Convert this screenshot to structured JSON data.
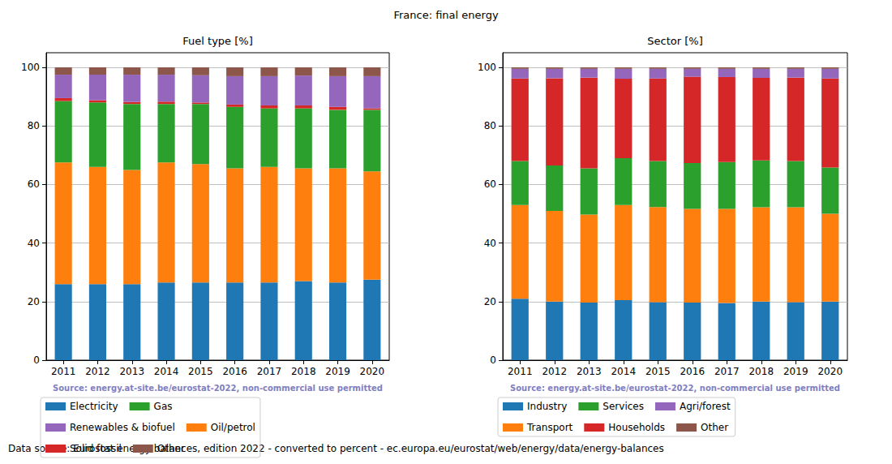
{
  "title": "France: final energy",
  "footnote": "Data source: Eurostat energy balances, edition 2022 - converted to percent - ec.europa.eu/eurostat/web/energy/data/energy-balances",
  "chart_data": [
    {
      "type": "bar",
      "stacked": true,
      "title": "Fuel type [%]",
      "annotation": "Source: energy.at-site.be/eurostat-2022, non-commercial use permitted",
      "categories": [
        "2011",
        "2012",
        "2013",
        "2014",
        "2015",
        "2016",
        "2017",
        "2018",
        "2019",
        "2020"
      ],
      "series": [
        {
          "name": "Electricity",
          "color": "#1f77b4",
          "values": [
            26,
            26,
            26,
            26.5,
            26.5,
            26.5,
            26.5,
            27,
            26.5,
            27.5
          ]
        },
        {
          "name": "Oil/petrol",
          "color": "#ff7f0e",
          "values": [
            41.5,
            40,
            39,
            41,
            40.5,
            39,
            39.5,
            38.5,
            39,
            37
          ]
        },
        {
          "name": "Gas",
          "color": "#2ca02c",
          "values": [
            21,
            22,
            22.5,
            20,
            20.5,
            21,
            20,
            20.5,
            20,
            21
          ]
        },
        {
          "name": "Solid fossil",
          "color": "#d62728",
          "values": [
            1,
            0.8,
            0.7,
            0.8,
            0.5,
            0.8,
            1,
            1,
            1,
            0.5
          ]
        },
        {
          "name": "Renewables & biofuel",
          "color": "#9467bd",
          "values": [
            8,
            8.7,
            9.3,
            9.2,
            9.3,
            9.7,
            10,
            10.2,
            10.5,
            11
          ]
        },
        {
          "name": "Other",
          "color": "#8c564b",
          "values": [
            2.5,
            2.5,
            2.5,
            2.5,
            2.7,
            3,
            3,
            2.8,
            3,
            3
          ]
        }
      ],
      "ylim": [
        0,
        105
      ],
      "yticks": [
        0,
        20,
        40,
        60,
        80,
        100
      ],
      "grid": true,
      "legend": "bottom"
    },
    {
      "type": "bar",
      "stacked": true,
      "title": "Sector [%]",
      "annotation": "Source: energy.at-site.be/eurostat-2022, non-commercial use permitted",
      "categories": [
        "2011",
        "2012",
        "2013",
        "2014",
        "2015",
        "2016",
        "2017",
        "2018",
        "2019",
        "2020"
      ],
      "series": [
        {
          "name": "Industry",
          "color": "#1f77b4",
          "values": [
            21,
            20,
            19.7,
            20.5,
            19.8,
            19.7,
            19.5,
            20,
            19.8,
            20
          ]
        },
        {
          "name": "Transport",
          "color": "#ff7f0e",
          "values": [
            32,
            31,
            30,
            32.5,
            32.5,
            32,
            32.2,
            32.2,
            32.4,
            30
          ]
        },
        {
          "name": "Services",
          "color": "#2ca02c",
          "values": [
            15,
            15.5,
            15.8,
            16,
            15.7,
            15.6,
            16,
            16,
            15.8,
            15.8
          ]
        },
        {
          "name": "Households",
          "color": "#d62728",
          "values": [
            28.2,
            29.8,
            31,
            27.1,
            28.2,
            29.5,
            29,
            28.2,
            28.5,
            30.4
          ]
        },
        {
          "name": "Agri/forest",
          "color": "#9467bd",
          "values": [
            3.3,
            3.2,
            3,
            3.4,
            3.3,
            2.7,
            2.8,
            3.1,
            3,
            3.3
          ]
        },
        {
          "name": "Other",
          "color": "#8c564b",
          "values": [
            0.5,
            0.5,
            0.5,
            0.5,
            0.5,
            0.5,
            0.5,
            0.5,
            0.5,
            0.5
          ]
        }
      ],
      "ylim": [
        0,
        105
      ],
      "yticks": [
        0,
        20,
        40,
        60,
        80,
        100
      ],
      "grid": true,
      "legend": "bottom"
    }
  ]
}
